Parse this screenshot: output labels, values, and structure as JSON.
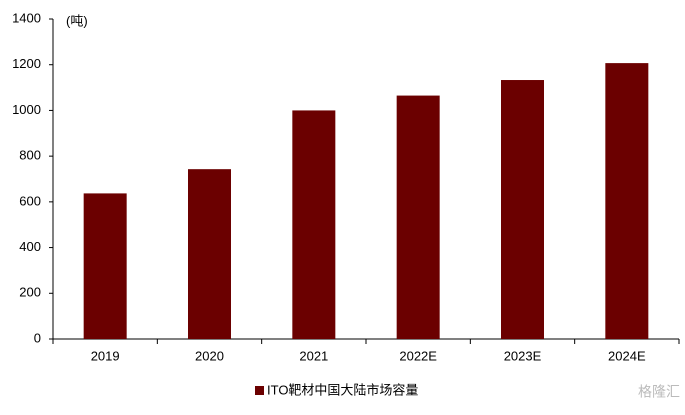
{
  "chart_data": {
    "type": "bar",
    "y_unit": "(吨)",
    "categories": [
      "2019",
      "2020",
      "2021",
      "2022E",
      "2023E",
      "2024E"
    ],
    "series": [
      {
        "name": "ITO靶材中国大陆市场容量",
        "color": "#6b0000",
        "values": [
          637,
          743,
          1000,
          1065,
          1133,
          1207
        ]
      }
    ],
    "ylim": [
      0,
      1400
    ],
    "yticks": [
      0,
      200,
      400,
      600,
      800,
      1000,
      1200,
      1400
    ],
    "grid": false,
    "legend": "bottom"
  },
  "watermark": "格隆汇"
}
